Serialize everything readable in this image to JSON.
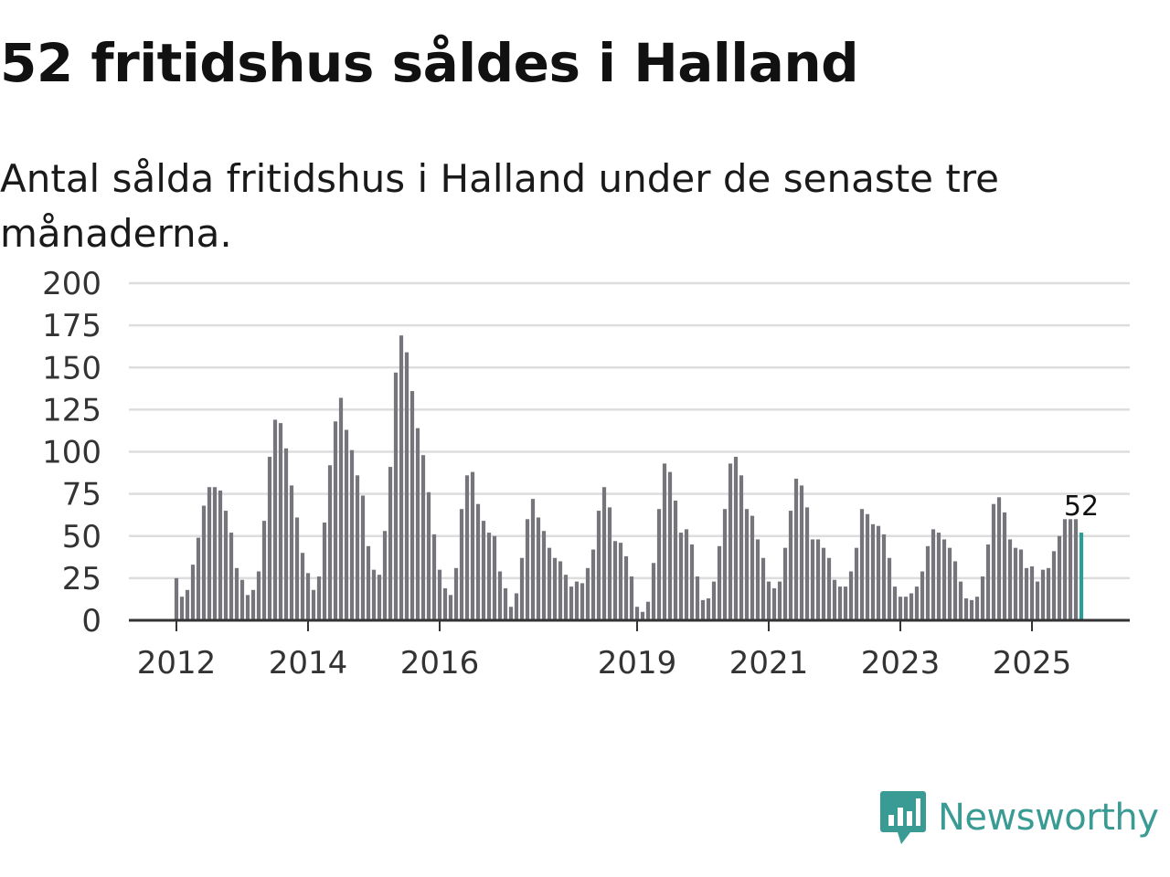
{
  "header": {
    "title": "52 fritidshus såldes i Halland",
    "subtitle": "Antal sålda fritidshus i Halland under de senaste tre månaderna."
  },
  "brand": {
    "name": "Newsworthy"
  },
  "colors": {
    "bar": "#76757b",
    "highlight": "#2a9d96",
    "grid": "#dddddd",
    "axis": "#333333",
    "brand": "#3a9b94"
  },
  "chart_data": {
    "type": "bar",
    "title": "52 fritidshus såldes i Halland",
    "subtitle": "Antal sålda fritidshus i Halland under de senaste tre månaderna.",
    "xlabel": "",
    "ylabel": "",
    "ylim": [
      0,
      200
    ],
    "yticks": [
      0,
      25,
      50,
      75,
      100,
      125,
      150,
      175,
      200
    ],
    "x_ticks": [
      {
        "label": "2012",
        "index": 0
      },
      {
        "label": "2014",
        "index": 24
      },
      {
        "label": "2016",
        "index": 48
      },
      {
        "label": "2019",
        "index": 84
      },
      {
        "label": "2021",
        "index": 108
      },
      {
        "label": "2023",
        "index": 132
      },
      {
        "label": "2025",
        "index": 156
      }
    ],
    "highlight_label": "52",
    "grid": true,
    "values": [
      25,
      14,
      18,
      33,
      49,
      68,
      79,
      79,
      77,
      65,
      52,
      31,
      24,
      15,
      18,
      29,
      59,
      97,
      119,
      117,
      102,
      80,
      61,
      40,
      28,
      18,
      26,
      58,
      92,
      118,
      132,
      113,
      101,
      86,
      74,
      44,
      30,
      27,
      53,
      91,
      147,
      169,
      159,
      136,
      114,
      98,
      76,
      51,
      30,
      19,
      15,
      31,
      66,
      86,
      88,
      69,
      59,
      52,
      50,
      29,
      19,
      8,
      16,
      37,
      60,
      72,
      61,
      53,
      43,
      37,
      35,
      27,
      20,
      23,
      22,
      31,
      42,
      65,
      79,
      67,
      47,
      46,
      38,
      26,
      8,
      5,
      11,
      34,
      66,
      93,
      88,
      71,
      52,
      54,
      45,
      26,
      12,
      13,
      23,
      44,
      66,
      93,
      97,
      86,
      66,
      62,
      48,
      37,
      23,
      19,
      23,
      43,
      65,
      84,
      80,
      67,
      48,
      48,
      43,
      37,
      24,
      20,
      20,
      29,
      43,
      66,
      63,
      57,
      56,
      51,
      37,
      20,
      14,
      14,
      16,
      20,
      29,
      44,
      54,
      52,
      48,
      43,
      35,
      23,
      13,
      12,
      14,
      26,
      45,
      69,
      73,
      64,
      48,
      43,
      42,
      31,
      32,
      23,
      30,
      31,
      41,
      50,
      60,
      60,
      60,
      52
    ]
  }
}
